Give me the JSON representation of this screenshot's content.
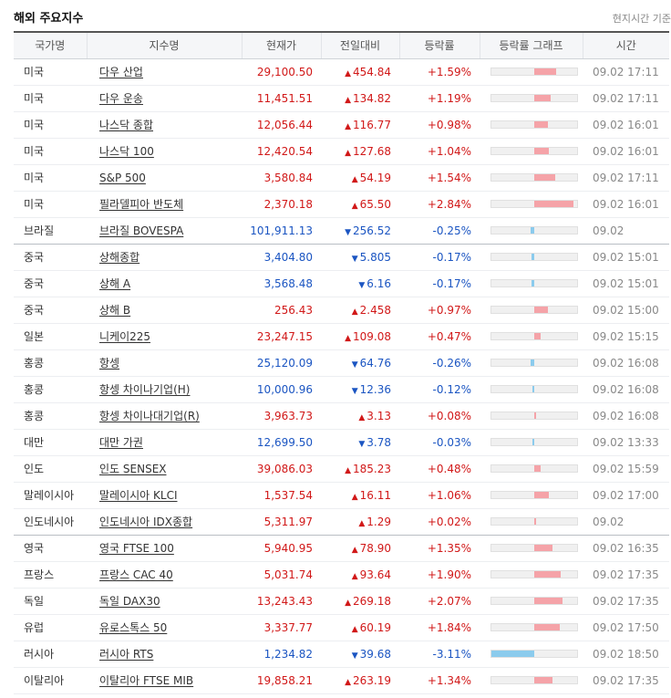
{
  "title": "해외 주요지수",
  "note": "현지시간 기준",
  "headers": [
    "국가명",
    "지수명",
    "현재가",
    "전일대비",
    "등락률",
    "등락률 그래프",
    "시간"
  ],
  "colors": {
    "up": "#d11818",
    "down": "#1b55c2",
    "up_bar": "#f5a3a8",
    "down_bar": "#8bcbed"
  },
  "rows": [
    {
      "country": "미국",
      "name": "다우 산업",
      "price": "29,100.50",
      "dir": "up",
      "change": "454.84",
      "rate": "+1.59%",
      "pct": 1.59,
      "time": "09.02 17:11"
    },
    {
      "country": "미국",
      "name": "다우 운송",
      "price": "11,451.51",
      "dir": "up",
      "change": "134.82",
      "rate": "+1.19%",
      "pct": 1.19,
      "time": "09.02 17:11"
    },
    {
      "country": "미국",
      "name": "나스닥 종합",
      "price": "12,056.44",
      "dir": "up",
      "change": "116.77",
      "rate": "+0.98%",
      "pct": 0.98,
      "time": "09.02 16:01"
    },
    {
      "country": "미국",
      "name": "나스닥 100",
      "price": "12,420.54",
      "dir": "up",
      "change": "127.68",
      "rate": "+1.04%",
      "pct": 1.04,
      "time": "09.02 16:01"
    },
    {
      "country": "미국",
      "name": "S&P 500",
      "price": "3,580.84",
      "dir": "up",
      "change": "54.19",
      "rate": "+1.54%",
      "pct": 1.54,
      "time": "09.02 17:11"
    },
    {
      "country": "미국",
      "name": "필라델피아 반도체",
      "price": "2,370.18",
      "dir": "up",
      "change": "65.50",
      "rate": "+2.84%",
      "pct": 2.84,
      "time": "09.02 16:01"
    },
    {
      "country": "브라질",
      "name": "브라질 BOVESPA",
      "price": "101,911.13",
      "dir": "down",
      "change": "256.52",
      "rate": "-0.25%",
      "pct": -0.25,
      "time": "09.02",
      "group_end": true
    },
    {
      "country": "중국",
      "name": "상해종합",
      "price": "3,404.80",
      "dir": "down",
      "change": "5.805",
      "rate": "-0.17%",
      "pct": -0.17,
      "time": "09.02 15:01"
    },
    {
      "country": "중국",
      "name": "상해 A",
      "price": "3,568.48",
      "dir": "down",
      "change": "6.16",
      "rate": "-0.17%",
      "pct": -0.17,
      "time": "09.02 15:01"
    },
    {
      "country": "중국",
      "name": "상해 B",
      "price": "256.43",
      "dir": "up",
      "change": "2.458",
      "rate": "+0.97%",
      "pct": 0.97,
      "time": "09.02 15:00"
    },
    {
      "country": "일본",
      "name": "니케이225",
      "price": "23,247.15",
      "dir": "up",
      "change": "109.08",
      "rate": "+0.47%",
      "pct": 0.47,
      "time": "09.02 15:15"
    },
    {
      "country": "홍콩",
      "name": "항셍",
      "price": "25,120.09",
      "dir": "down",
      "change": "64.76",
      "rate": "-0.26%",
      "pct": -0.26,
      "time": "09.02 16:08"
    },
    {
      "country": "홍콩",
      "name": "항셍 차이나기업(H)",
      "price": "10,000.96",
      "dir": "down",
      "change": "12.36",
      "rate": "-0.12%",
      "pct": -0.12,
      "time": "09.02 16:08"
    },
    {
      "country": "홍콩",
      "name": "항셍 차이나대기업(R)",
      "price": "3,963.73",
      "dir": "up",
      "change": "3.13",
      "rate": "+0.08%",
      "pct": 0.08,
      "time": "09.02 16:08"
    },
    {
      "country": "대만",
      "name": "대만 가권",
      "price": "12,699.50",
      "dir": "down",
      "change": "3.78",
      "rate": "-0.03%",
      "pct": -0.03,
      "time": "09.02 13:33"
    },
    {
      "country": "인도",
      "name": "인도 SENSEX",
      "price": "39,086.03",
      "dir": "up",
      "change": "185.23",
      "rate": "+0.48%",
      "pct": 0.48,
      "time": "09.02 15:59"
    },
    {
      "country": "말레이시아",
      "name": "말레이시아 KLCI",
      "price": "1,537.54",
      "dir": "up",
      "change": "16.11",
      "rate": "+1.06%",
      "pct": 1.06,
      "time": "09.02 17:00"
    },
    {
      "country": "인도네시아",
      "name": "인도네시아 IDX종합",
      "price": "5,311.97",
      "dir": "up",
      "change": "1.29",
      "rate": "+0.02%",
      "pct": 0.02,
      "time": "09.02",
      "group_end": true
    },
    {
      "country": "영국",
      "name": "영국 FTSE 100",
      "price": "5,940.95",
      "dir": "up",
      "change": "78.90",
      "rate": "+1.35%",
      "pct": 1.35,
      "time": "09.02 16:35"
    },
    {
      "country": "프랑스",
      "name": "프랑스 CAC 40",
      "price": "5,031.74",
      "dir": "up",
      "change": "93.64",
      "rate": "+1.90%",
      "pct": 1.9,
      "time": "09.02 17:35"
    },
    {
      "country": "독일",
      "name": "독일 DAX30",
      "price": "13,243.43",
      "dir": "up",
      "change": "269.18",
      "rate": "+2.07%",
      "pct": 2.07,
      "time": "09.02 17:35"
    },
    {
      "country": "유럽",
      "name": "유로스톡스 50",
      "price": "3,337.77",
      "dir": "up",
      "change": "60.19",
      "rate": "+1.84%",
      "pct": 1.84,
      "time": "09.02 17:50"
    },
    {
      "country": "러시아",
      "name": "러시아 RTS",
      "price": "1,234.82",
      "dir": "down",
      "change": "39.68",
      "rate": "-3.11%",
      "pct": -3.11,
      "time": "09.02 18:50"
    },
    {
      "country": "이탈리아",
      "name": "이탈리아 FTSE MIB",
      "price": "19,858.21",
      "dir": "up",
      "change": "263.19",
      "rate": "+1.34%",
      "pct": 1.34,
      "time": "09.02 17:35"
    }
  ]
}
